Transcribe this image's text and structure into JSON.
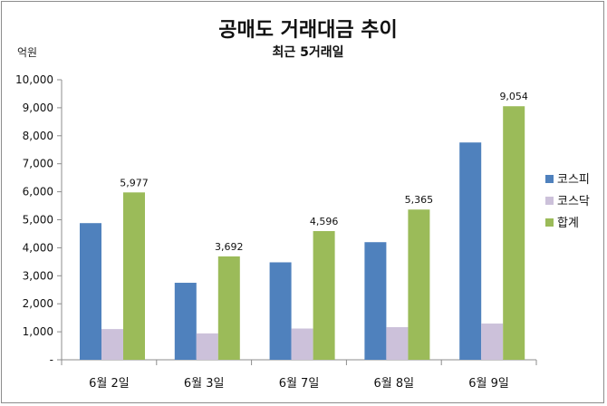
{
  "chart_data": {
    "type": "bar",
    "title": "공매도 거래대금 추이",
    "subtitle": "최근 5거래일",
    "ylabel": "억원",
    "xlabel": "",
    "ylim": [
      0,
      10000
    ],
    "yticks": [
      0,
      1000,
      2000,
      3000,
      4000,
      5000,
      6000,
      7000,
      8000,
      9000,
      10000
    ],
    "ytick_labels": [
      "-",
      "1,000",
      "2,000",
      "3,000",
      "4,000",
      "5,000",
      "6,000",
      "7,000",
      "8,000",
      "9,000",
      "10,000"
    ],
    "categories": [
      "6월 2일",
      "6월 3일",
      "6월 7일",
      "6월 8일",
      "6월 9일"
    ],
    "series": [
      {
        "name": "코스피",
        "color": "#4f81bd",
        "values": [
          4880,
          2750,
          3480,
          4200,
          7760
        ]
      },
      {
        "name": "코스닥",
        "color": "#ccc1da",
        "values": [
          1097,
          942,
          1116,
          1165,
          1294
        ]
      },
      {
        "name": "합계",
        "color": "#9bbb59",
        "values": [
          5977,
          3692,
          4596,
          5365,
          9054
        ],
        "data_labels": [
          "5,977",
          "3,692",
          "4,596",
          "5,365",
          "9,054"
        ]
      }
    ],
    "grid": false,
    "legend": "right"
  }
}
